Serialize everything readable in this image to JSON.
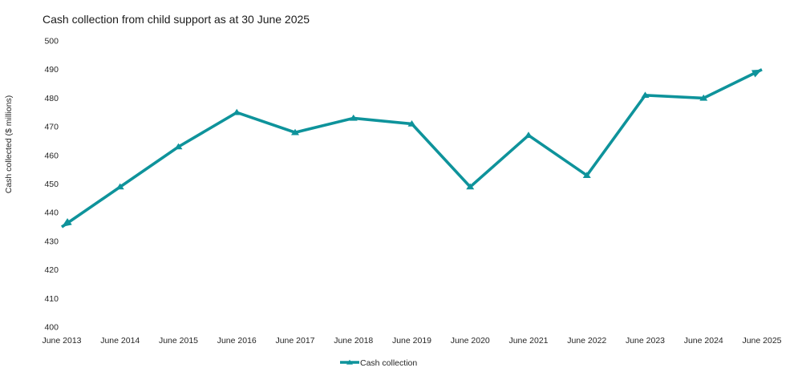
{
  "chart": {
    "title": "Cash collection from child support as at 30 June 2025",
    "y_axis_title": "Cash collected ($ millions)",
    "legend_label": "Cash collection",
    "line_color": "#0E939B",
    "text_color": "#262626",
    "background_color": "#ffffff"
  },
  "chart_data": {
    "type": "line",
    "title": "Cash collection from child support as at 30 June 2025",
    "xlabel": "",
    "ylabel": "Cash collected ($ millions)",
    "categories": [
      "June 2013",
      "June 2014",
      "June 2015",
      "June 2016",
      "June 2017",
      "June 2018",
      "June 2019",
      "June 2020",
      "June 2021",
      "June 2022",
      "June 2023",
      "June 2024",
      "June 2025"
    ],
    "series": [
      {
        "name": "Cash collection",
        "values": [
          435,
          449,
          463,
          475,
          468,
          473,
          471,
          449,
          467,
          453,
          481,
          480,
          490
        ]
      }
    ],
    "ylim": [
      400,
      500
    ],
    "ytick_step": 10,
    "grid": false,
    "axis_lines": false,
    "legend_position": "bottom",
    "marker": "triangle",
    "line_end_caps": "arrow"
  }
}
